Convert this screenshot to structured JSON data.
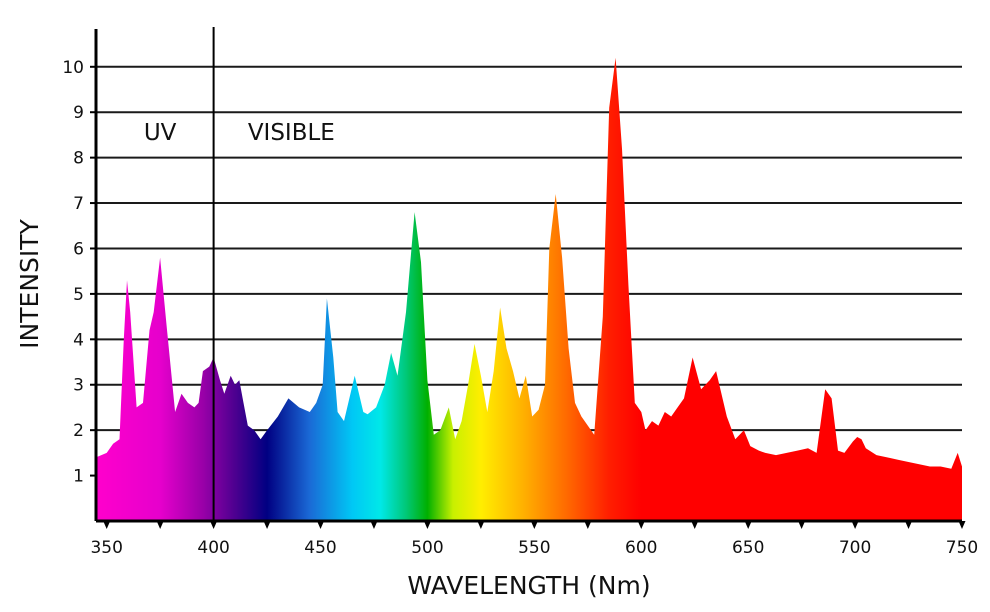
{
  "chart_data": {
    "type": "area",
    "title": "",
    "xlabel": "WAVELENGTH (Nm)",
    "ylabel": "INTENSITY",
    "xlim": [
      345,
      750
    ],
    "ylim": [
      0,
      10.7
    ],
    "x_ticks": [
      350,
      400,
      450,
      500,
      550,
      600,
      650,
      700,
      750
    ],
    "y_ticks": [
      1,
      2,
      3,
      4,
      5,
      6,
      7,
      8,
      9,
      10
    ],
    "grid": "horizontal",
    "region_divider": 400,
    "regions": [
      {
        "label": "UV",
        "x": 375
      },
      {
        "label": "VISIBLE",
        "x": 416
      }
    ],
    "gradient_colors": [
      {
        "nm": 345,
        "color": "#ff00cc"
      },
      {
        "nm": 375,
        "color": "#e600cc"
      },
      {
        "nm": 395,
        "color": "#9900a8"
      },
      {
        "nm": 410,
        "color": "#4d0090"
      },
      {
        "nm": 425,
        "color": "#000082"
      },
      {
        "nm": 445,
        "color": "#1a6ad6"
      },
      {
        "nm": 465,
        "color": "#00c8f5"
      },
      {
        "nm": 478,
        "color": "#00e8e8"
      },
      {
        "nm": 490,
        "color": "#00c878"
      },
      {
        "nm": 500,
        "color": "#00b000"
      },
      {
        "nm": 512,
        "color": "#c8f000"
      },
      {
        "nm": 525,
        "color": "#ffee00"
      },
      {
        "nm": 545,
        "color": "#ffb000"
      },
      {
        "nm": 565,
        "color": "#ff6a00"
      },
      {
        "nm": 585,
        "color": "#ff1e00"
      },
      {
        "nm": 600,
        "color": "#ff0000"
      },
      {
        "nm": 750,
        "color": "#ff0000"
      }
    ],
    "series": [
      {
        "x": [
          345,
          350,
          353,
          356,
          358,
          359.5,
          361,
          364,
          367,
          370,
          372,
          375,
          378,
          382,
          385,
          388,
          391,
          393,
          395,
          398,
          400,
          403,
          405,
          408,
          410,
          412,
          414,
          416,
          419,
          422,
          425,
          430,
          435,
          440,
          445,
          448,
          451,
          453,
          456,
          458,
          461,
          463,
          466,
          470,
          472,
          476,
          480,
          483,
          486,
          490,
          494,
          497,
          500,
          503,
          506,
          510,
          513,
          516,
          519,
          522,
          525,
          528,
          531,
          534,
          537,
          540,
          543,
          546,
          549,
          552,
          555,
          557,
          560,
          563,
          566,
          569,
          572,
          575,
          578,
          582,
          585,
          588,
          591,
          594,
          597,
          600,
          602,
          605,
          608,
          611,
          614,
          617,
          620,
          624,
          628,
          632,
          635,
          640,
          644,
          648,
          651,
          655,
          658,
          663,
          668,
          673,
          678,
          682,
          686,
          689,
          692,
          695,
          699,
          701,
          703,
          705,
          710,
          715,
          720,
          725,
          730,
          735,
          740,
          745,
          748,
          750
        ],
        "values": [
          1.4,
          1.5,
          1.7,
          1.8,
          4.0,
          5.3,
          4.6,
          2.5,
          2.6,
          4.2,
          4.6,
          5.8,
          4.3,
          2.4,
          2.8,
          2.6,
          2.5,
          2.6,
          3.3,
          3.4,
          3.6,
          3.1,
          2.8,
          3.2,
          3.0,
          3.1,
          2.6,
          2.1,
          2.0,
          1.8,
          2.0,
          2.3,
          2.7,
          2.5,
          2.4,
          2.6,
          3.0,
          4.9,
          3.6,
          2.4,
          2.2,
          2.6,
          3.2,
          2.4,
          2.35,
          2.5,
          3.0,
          3.7,
          3.2,
          4.6,
          6.8,
          5.7,
          3.1,
          1.9,
          2.0,
          2.5,
          1.8,
          2.2,
          3.0,
          3.9,
          3.2,
          2.4,
          3.3,
          4.7,
          3.8,
          3.3,
          2.7,
          3.2,
          2.3,
          2.45,
          3.0,
          6.0,
          7.2,
          5.8,
          3.8,
          2.6,
          2.3,
          2.1,
          1.9,
          4.5,
          9.1,
          10.2,
          8.2,
          5.2,
          2.6,
          2.4,
          2.0,
          2.2,
          2.1,
          2.4,
          2.3,
          2.5,
          2.7,
          3.6,
          2.9,
          3.1,
          3.3,
          2.3,
          1.8,
          2.0,
          1.65,
          1.55,
          1.5,
          1.45,
          1.5,
          1.55,
          1.6,
          1.5,
          2.9,
          2.7,
          1.55,
          1.5,
          1.75,
          1.85,
          1.8,
          1.6,
          1.45,
          1.4,
          1.35,
          1.3,
          1.25,
          1.2,
          1.2,
          1.15,
          1.5,
          1.2
        ]
      }
    ]
  }
}
